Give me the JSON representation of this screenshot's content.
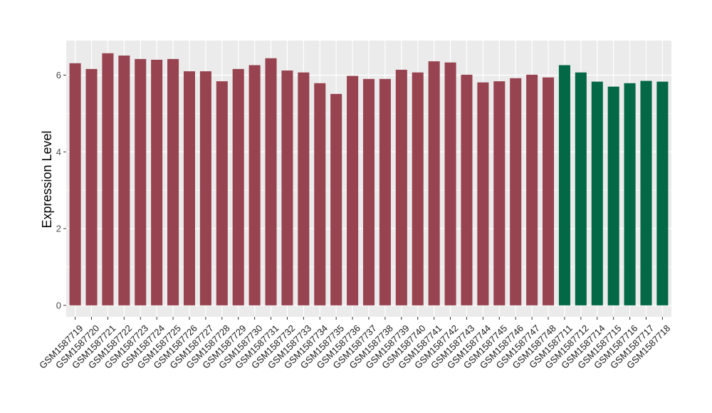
{
  "chart_data": {
    "type": "bar",
    "title": "",
    "xlabel": "",
    "ylabel": "Expression Level",
    "ylim": [
      -0.3,
      6.9
    ],
    "yticks": [
      0,
      2,
      4,
      6
    ],
    "grid": true,
    "background": "#ebebeb",
    "gridline_color": "#ffffff",
    "series": [
      {
        "color": "#984350",
        "categories": [
          "GSM1587719",
          "GSM1587720",
          "GSM1587721",
          "GSM1587722",
          "GSM1587723",
          "GSM1587724",
          "GSM1587725",
          "GSM1587726",
          "GSM1587727",
          "GSM1587728",
          "GSM1587729",
          "GSM1587730",
          "GSM1587731",
          "GSM1587732",
          "GSM1587733",
          "GSM1587734",
          "GSM1587735",
          "GSM1587736",
          "GSM1587737",
          "GSM1587738",
          "GSM1587739",
          "GSM1587740",
          "GSM1587741",
          "GSM1587742",
          "GSM1587743",
          "GSM1587744",
          "GSM1587745",
          "GSM1587746",
          "GSM1587747",
          "GSM1587748"
        ],
        "values": [
          6.31,
          6.16,
          6.57,
          6.51,
          6.42,
          6.4,
          6.42,
          6.1,
          6.1,
          5.84,
          6.16,
          6.26,
          6.44,
          6.12,
          6.07,
          5.79,
          5.51,
          5.98,
          5.9,
          5.9,
          6.14,
          6.07,
          6.36,
          6.33,
          6.01,
          5.81,
          5.84,
          5.92,
          6.01,
          5.94
        ]
      },
      {
        "color": "#036846",
        "categories": [
          "GSM1587711",
          "GSM1587712",
          "GSM1587714",
          "GSM1587715",
          "GSM1587716",
          "GSM1587717",
          "GSM1587718"
        ],
        "values": [
          6.26,
          6.07,
          5.83,
          5.7,
          5.79,
          5.85,
          5.83
        ]
      }
    ]
  }
}
